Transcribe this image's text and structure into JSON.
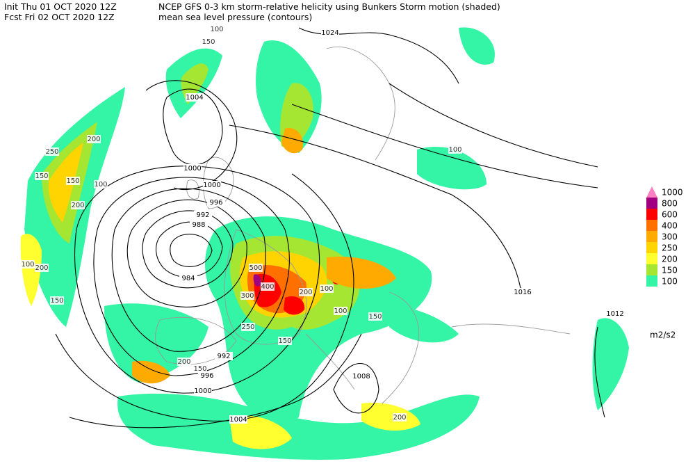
{
  "header": {
    "init": "Init  Thu 01 OCT 2020 12Z",
    "fcst": "Fcst Fri 02 OCT 2020 12Z",
    "title": "NCEP GFS 0-3 km storm-relative helicity using Bunkers Storm motion (shaded)",
    "subtitle": "mean sea level pressure (contours)"
  },
  "legend": {
    "levels": [
      {
        "label": "1000",
        "color": "#ff80c0"
      },
      {
        "label": "800",
        "color": "#a0007f"
      },
      {
        "label": "600",
        "color": "#ff0000"
      },
      {
        "label": "400",
        "color": "#ff7000"
      },
      {
        "label": "300",
        "color": "#ffaa00"
      },
      {
        "label": "250",
        "color": "#ffd400"
      },
      {
        "label": "200",
        "color": "#ffff30"
      },
      {
        "label": "150",
        "color": "#a5e632"
      },
      {
        "label": "100",
        "color": "#33f5a5"
      }
    ],
    "units": "m2/s2"
  },
  "contour_labels": [
    "1024",
    "1004",
    "1000",
    "1000",
    "996",
    "992",
    "988",
    "984",
    "992",
    "996",
    "1000",
    "1004",
    "1008",
    "1016",
    "1012"
  ],
  "shading_labels": [
    "100",
    "150",
    "200",
    "150",
    "250",
    "200",
    "150",
    "200",
    "100",
    "150",
    "100",
    "500",
    "400",
    "300",
    "250",
    "200",
    "150",
    "100",
    "200",
    "150",
    "100",
    "150",
    "200",
    "100"
  ]
}
